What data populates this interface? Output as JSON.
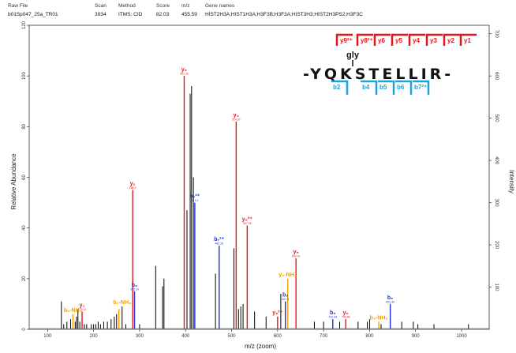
{
  "header": {
    "raw_file_label": "Raw File",
    "raw_file": "b01Sp047_25a_TR01",
    "scan_label": "Scan",
    "scan": "3934",
    "method_label": "Method",
    "method": "ITMS; CID",
    "score_label": "Score",
    "score": "82.03",
    "mz_label": "m/z",
    "mz": "455.59",
    "gene_label": "Gene names",
    "genes": "HIST2H3A;HIST1H3A;H3F3B;H3F3A;HIST3H3;HIST2H3PS2;H3F3C"
  },
  "chart_data": {
    "type": "bar",
    "xlabel": "m/z (zoom)",
    "ylabel": "Relative Abundance",
    "y2label": "Intensity",
    "xlim": [
      60,
      1060
    ],
    "ylim": [
      0,
      120
    ],
    "y2lim": [
      0,
      720
    ],
    "xticks": [
      100,
      200,
      300,
      400,
      500,
      600,
      700,
      800,
      900,
      1000
    ],
    "yticks": [
      0,
      20,
      40,
      60,
      80,
      100,
      120
    ],
    "y2ticks": [
      100,
      200,
      300,
      400,
      500,
      600,
      700
    ],
    "colors": {
      "y": "#e3141b",
      "b": "#1b2fd6",
      "loss": "#f0a000",
      "other": "#000000"
    },
    "peaks": [
      {
        "mz": 130,
        "ab": 11,
        "type": "other"
      },
      {
        "mz": 135,
        "ab": 2,
        "type": "other"
      },
      {
        "mz": 142,
        "ab": 3,
        "type": "other"
      },
      {
        "mz": 150,
        "ab": 4,
        "type": "other"
      },
      {
        "mz": 155,
        "ab": 6,
        "type": "loss"
      },
      {
        "mz": 160,
        "ab": 3,
        "type": "other"
      },
      {
        "mz": 163,
        "ab": 5,
        "type": "other"
      },
      {
        "mz": 166,
        "ab": 8,
        "type": "other"
      },
      {
        "mz": 170,
        "ab": 3,
        "type": "other"
      },
      {
        "mz": 175,
        "ab": 7,
        "type": "y"
      },
      {
        "mz": 180,
        "ab": 2,
        "type": "other"
      },
      {
        "mz": 185,
        "ab": 2,
        "type": "other"
      },
      {
        "mz": 195,
        "ab": 2,
        "type": "other"
      },
      {
        "mz": 200,
        "ab": 2,
        "type": "other"
      },
      {
        "mz": 205,
        "ab": 2,
        "type": "other"
      },
      {
        "mz": 210,
        "ab": 3,
        "type": "other"
      },
      {
        "mz": 215,
        "ab": 2,
        "type": "other"
      },
      {
        "mz": 222,
        "ab": 3,
        "type": "other"
      },
      {
        "mz": 230,
        "ab": 3,
        "type": "other"
      },
      {
        "mz": 238,
        "ab": 4,
        "type": "other"
      },
      {
        "mz": 245,
        "ab": 5,
        "type": "other"
      },
      {
        "mz": 250,
        "ab": 6,
        "type": "other"
      },
      {
        "mz": 255,
        "ab": 8,
        "type": "loss"
      },
      {
        "mz": 262,
        "ab": 9,
        "type": "other"
      },
      {
        "mz": 270,
        "ab": 2,
        "type": "other"
      },
      {
        "mz": 285,
        "ab": 55,
        "type": "y"
      },
      {
        "mz": 289,
        "ab": 15,
        "type": "b"
      },
      {
        "mz": 300,
        "ab": 2,
        "type": "other"
      },
      {
        "mz": 335,
        "ab": 25,
        "type": "other"
      },
      {
        "mz": 350,
        "ab": 17,
        "type": "other"
      },
      {
        "mz": 353,
        "ab": 20,
        "type": "other"
      },
      {
        "mz": 397,
        "ab": 100,
        "type": "y"
      },
      {
        "mz": 403,
        "ab": 47,
        "type": "other"
      },
      {
        "mz": 410,
        "ab": 93,
        "type": "other"
      },
      {
        "mz": 413,
        "ab": 96,
        "type": "other"
      },
      {
        "mz": 417,
        "ab": 60,
        "type": "other"
      },
      {
        "mz": 420,
        "ab": 50,
        "type": "b"
      },
      {
        "mz": 465,
        "ab": 22,
        "type": "other"
      },
      {
        "mz": 473,
        "ab": 33,
        "type": "b"
      },
      {
        "mz": 505,
        "ab": 32,
        "type": "other"
      },
      {
        "mz": 510,
        "ab": 82,
        "type": "y"
      },
      {
        "mz": 515,
        "ab": 8,
        "type": "other"
      },
      {
        "mz": 520,
        "ab": 9,
        "type": "other"
      },
      {
        "mz": 525,
        "ab": 10,
        "type": "other"
      },
      {
        "mz": 534,
        "ab": 41,
        "type": "y"
      },
      {
        "mz": 550,
        "ab": 7,
        "type": "other"
      },
      {
        "mz": 575,
        "ab": 5,
        "type": "other"
      },
      {
        "mz": 600,
        "ab": 5,
        "type": "y"
      },
      {
        "mz": 607,
        "ab": 14,
        "type": "other"
      },
      {
        "mz": 617,
        "ab": 11,
        "type": "b"
      },
      {
        "mz": 622,
        "ab": 20,
        "type": "loss"
      },
      {
        "mz": 640,
        "ab": 28,
        "type": "y"
      },
      {
        "mz": 680,
        "ab": 3,
        "type": "other"
      },
      {
        "mz": 700,
        "ab": 3,
        "type": "other"
      },
      {
        "mz": 720,
        "ab": 4,
        "type": "b"
      },
      {
        "mz": 735,
        "ab": 3,
        "type": "other"
      },
      {
        "mz": 748,
        "ab": 4,
        "type": "y"
      },
      {
        "mz": 775,
        "ab": 3,
        "type": "other"
      },
      {
        "mz": 795,
        "ab": 3,
        "type": "other"
      },
      {
        "mz": 800,
        "ab": 4,
        "type": "other"
      },
      {
        "mz": 820,
        "ab": 3,
        "type": "loss"
      },
      {
        "mz": 825,
        "ab": 2,
        "type": "other"
      },
      {
        "mz": 845,
        "ab": 10,
        "type": "b"
      },
      {
        "mz": 870,
        "ab": 3,
        "type": "other"
      },
      {
        "mz": 895,
        "ab": 3,
        "type": "other"
      },
      {
        "mz": 905,
        "ab": 2,
        "type": "other"
      },
      {
        "mz": 940,
        "ab": 2,
        "type": "other"
      },
      {
        "mz": 1015,
        "ab": 2,
        "type": "other"
      }
    ],
    "annotations": [
      {
        "label": "y₁",
        "sub": "175.12",
        "mz": 175,
        "ab": 7,
        "type": "y"
      },
      {
        "label": "b₂-NH₃",
        "sub": "",
        "mz": 155,
        "ab": 6,
        "type": "loss"
      },
      {
        "label": "b₂-NH₃",
        "sub": "",
        "mz": 262,
        "ab": 9,
        "type": "loss"
      },
      {
        "label": "y₂",
        "sub": "288.2",
        "mz": 285,
        "ab": 55,
        "type": "y"
      },
      {
        "label": "b₂",
        "sub": "292.14",
        "mz": 289,
        "ab": 15,
        "type": "b"
      },
      {
        "label": "y₃",
        "sub": "401.29",
        "mz": 397,
        "ab": 100,
        "type": "y"
      },
      {
        "label": "b₇²⁺",
        "sub": "421.2",
        "mz": 420,
        "ab": 50,
        "type": "b"
      },
      {
        "label": "b₇²⁺",
        "sub": "482.26",
        "mz": 473,
        "ab": 33,
        "type": "b"
      },
      {
        "label": "y₄",
        "sub": "514.37",
        "mz": 510,
        "ab": 82,
        "type": "y"
      },
      {
        "label": "y₈²⁺",
        "sub": "537.32",
        "mz": 534,
        "ab": 41,
        "type": "y"
      },
      {
        "label": "y₉²⁺",
        "sub": "",
        "mz": 600,
        "ab": 5,
        "type": "y"
      },
      {
        "label": "b₃",
        "sub": "621.3",
        "mz": 617,
        "ab": 11,
        "type": "b"
      },
      {
        "label": "y₅-NH₃",
        "sub": "",
        "mz": 622,
        "ab": 20,
        "type": "loss"
      },
      {
        "label": "y₅",
        "sub": "643.41",
        "mz": 640,
        "ab": 28,
        "type": "y"
      },
      {
        "label": "b₅",
        "sub": "722.39",
        "mz": 720,
        "ab": 4,
        "type": "b"
      },
      {
        "label": "y₆",
        "sub": "756.48",
        "mz": 748,
        "ab": 4,
        "type": "y"
      },
      {
        "label": "b₃-NH₃",
        "sub": "",
        "mz": 820,
        "ab": 3,
        "type": "loss"
      },
      {
        "label": "b₆",
        "sub": "851.39",
        "mz": 845,
        "ab": 10,
        "type": "b"
      }
    ]
  },
  "sequence": {
    "text": "-YQKSTELLIR-",
    "modification": "gly",
    "y_ions": [
      "y9²⁺",
      "y8²⁺",
      "y6",
      "y5",
      "y4",
      "y3",
      "y2",
      "y1"
    ],
    "b_ions": [
      "b2",
      "b4",
      "b5",
      "b6",
      "b7²⁺"
    ]
  }
}
